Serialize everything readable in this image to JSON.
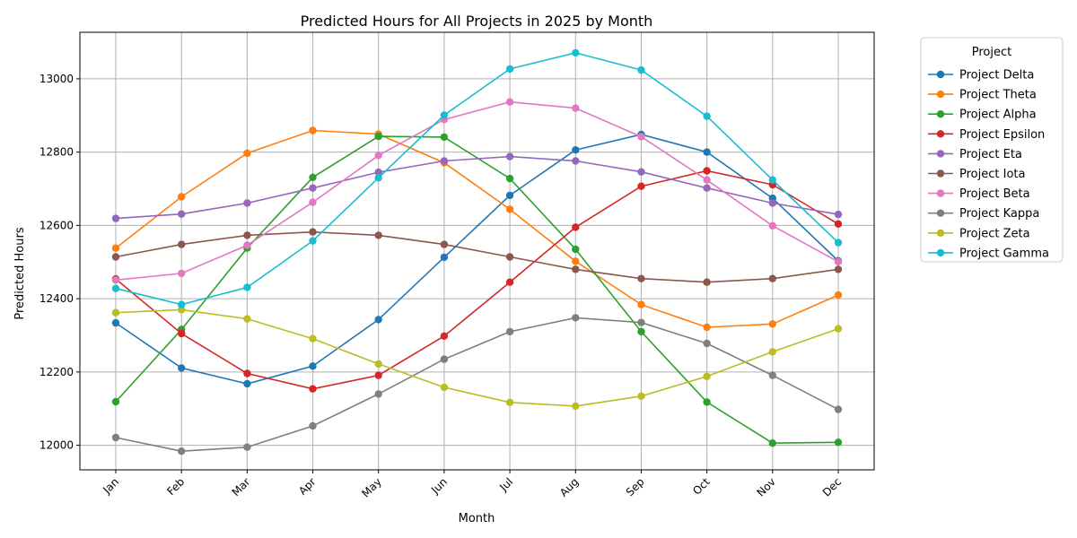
{
  "chart_data": {
    "type": "line",
    "title": "Predicted Hours for All Projects in 2025 by Month",
    "xlabel": "Month",
    "ylabel": "Predicted Hours",
    "categories": [
      "Jan",
      "Feb",
      "Mar",
      "Apr",
      "May",
      "Jun",
      "Jul",
      "Aug",
      "Sep",
      "Oct",
      "Nov",
      "Dec"
    ],
    "ylim": [
      11933,
      13127
    ],
    "yticks": [
      12000,
      12200,
      12400,
      12600,
      12800,
      13000
    ],
    "grid": true,
    "legend": {
      "title": "Project",
      "placement": "outside-right"
    },
    "series": [
      {
        "name": "Project Delta",
        "color": "#1f77b4",
        "values": [
          12334,
          12211,
          12168,
          12216,
          12343,
          12513,
          12682,
          12806,
          12848,
          12800,
          12674,
          12503
        ]
      },
      {
        "name": "Project Theta",
        "color": "#ff7f0e",
        "values": [
          12538,
          12678,
          12797,
          12859,
          12849,
          12771,
          12644,
          12502,
          12384,
          12322,
          12331,
          12410
        ]
      },
      {
        "name": "Project Alpha",
        "color": "#2ca02c",
        "values": [
          12119,
          12316,
          12538,
          12731,
          12843,
          12841,
          12728,
          12535,
          12310,
          12118,
          12006,
          12008
        ]
      },
      {
        "name": "Project Epsilon",
        "color": "#d62728",
        "values": [
          12454,
          12305,
          12196,
          12154,
          12191,
          12298,
          12445,
          12595,
          12707,
          12749,
          12711,
          12604
        ]
      },
      {
        "name": "Project Eta",
        "color": "#9467bd",
        "values": [
          12619,
          12631,
          12661,
          12702,
          12745,
          12776,
          12788,
          12776,
          12746,
          12702,
          12661,
          12630
        ]
      },
      {
        "name": "Project Iota",
        "color": "#8c564b",
        "values": [
          12514,
          12548,
          12573,
          12582,
          12573,
          12548,
          12514,
          12480,
          12455,
          12445,
          12455,
          12480
        ]
      },
      {
        "name": "Project Beta",
        "color": "#e377c2",
        "values": [
          12451,
          12469,
          12546,
          12663,
          12791,
          12889,
          12937,
          12920,
          12842,
          12724,
          12599,
          12501
        ]
      },
      {
        "name": "Project Kappa",
        "color": "#7f7f7f",
        "values": [
          12021,
          11984,
          11995,
          12053,
          12140,
          12235,
          12310,
          12348,
          12335,
          12278,
          12191,
          12098
        ]
      },
      {
        "name": "Project Zeta",
        "color": "#bcbd22",
        "values": [
          12362,
          12370,
          12345,
          12291,
          12222,
          12158,
          12117,
          12107,
          12134,
          12188,
          12255,
          12318
        ]
      },
      {
        "name": "Project Gamma",
        "color": "#17becf",
        "values": [
          12428,
          12384,
          12431,
          12558,
          12730,
          12901,
          13027,
          13071,
          13024,
          12898,
          12724,
          12553
        ]
      }
    ]
  }
}
